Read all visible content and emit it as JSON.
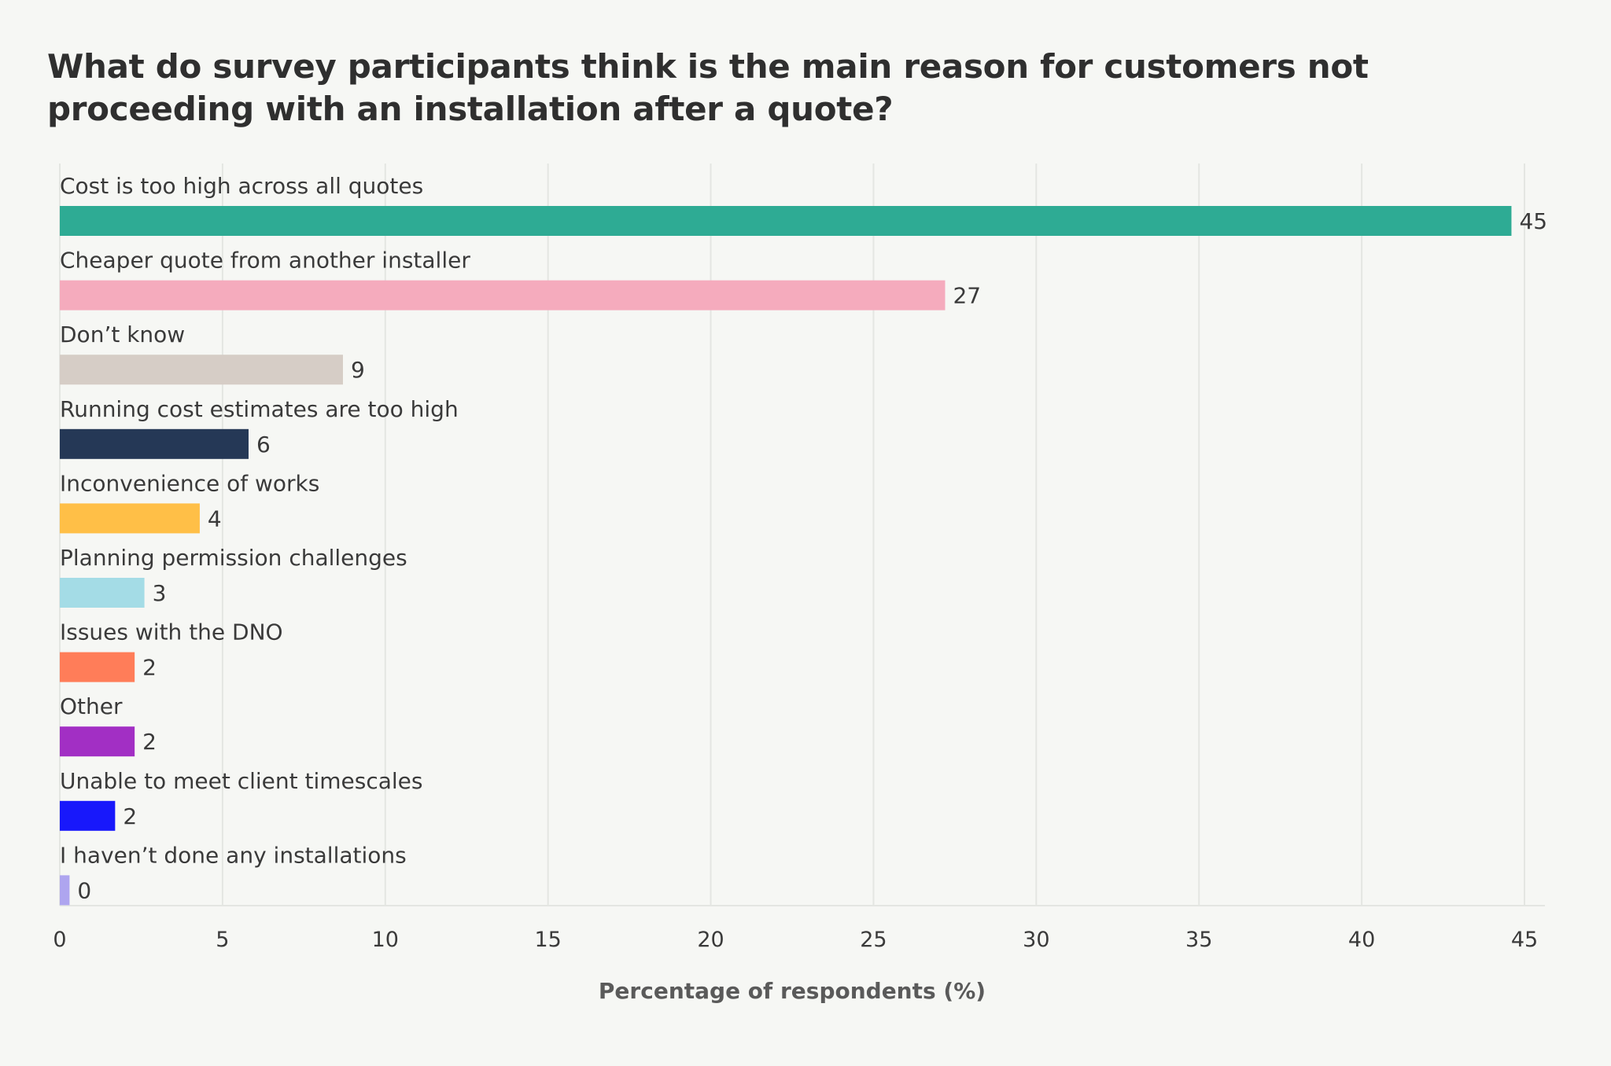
{
  "chart_data": {
    "type": "bar",
    "orientation": "horizontal",
    "title": "What do survey participants think is the main reason for customers not proceeding with an installation after a quote?",
    "xlabel": "Percentage of respondents (%)",
    "ylabel": "",
    "xlim": [
      0,
      45
    ],
    "ticks": [
      0,
      5,
      10,
      15,
      20,
      25,
      30,
      35,
      40,
      45
    ],
    "grid": "vertical",
    "legend": "none",
    "categories": [
      "Cost is too high across all quotes",
      "Cheaper quote from another installer",
      "Don’t know",
      "Running cost estimates are too high",
      "Inconvenience of works",
      "Planning permission challenges",
      "Issues with the DNO",
      "Other",
      "Unable to meet client timescales",
      "I haven’t done any installations"
    ],
    "values": [
      44.6,
      27.2,
      8.7,
      5.8,
      4.3,
      2.6,
      2.3,
      2.3,
      1.7,
      0.3
    ],
    "value_labels": [
      "45",
      "27",
      "9",
      "6",
      "4",
      "3",
      "2",
      "2",
      "2",
      "0"
    ],
    "colors": [
      "#2eab94",
      "#f5abbd",
      "#d6cdc6",
      "#253856",
      "#ffbf47",
      "#a4dce6",
      "#ff7d59",
      "#a22fc4",
      "#1818fb",
      "#aea5ef"
    ]
  }
}
